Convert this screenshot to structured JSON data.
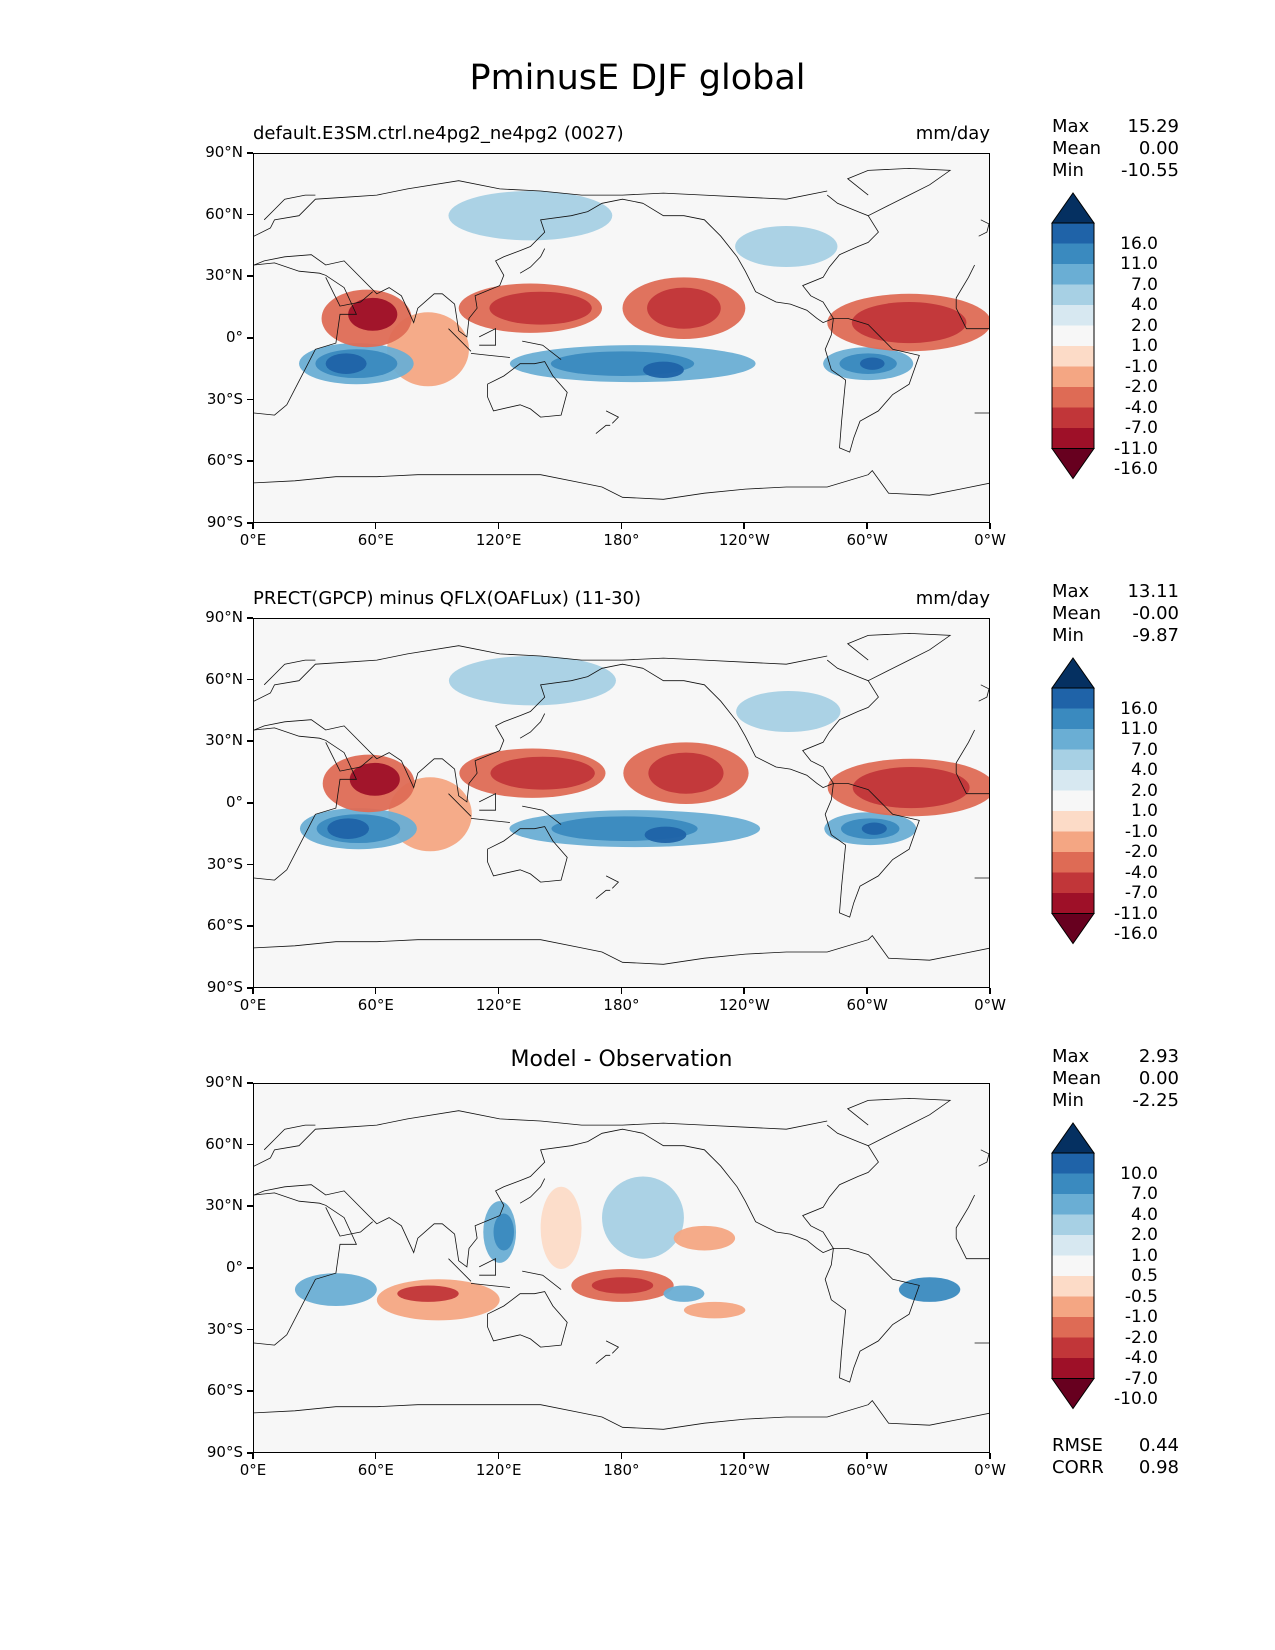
{
  "title": "PminusE DJF global",
  "axes": {
    "x_ticks": [
      "0°E",
      "60°E",
      "120°E",
      "180°",
      "120°W",
      "60°W",
      "0°W"
    ],
    "y_ticks": [
      "90°N",
      "60°N",
      "30°N",
      "0°",
      "30°S",
      "60°S",
      "90°S"
    ]
  },
  "panels": [
    {
      "title_left": "default.E3SM.ctrl.ne4pg2_ne4pg2 (0027)",
      "title_right": "mm/day",
      "title_center": "",
      "stats": [
        {
          "label": "Max",
          "value": "15.29"
        },
        {
          "label": "Mean",
          "value": "0.00"
        },
        {
          "label": "Min",
          "value": "-10.55"
        }
      ],
      "colorbar_labels": [
        "16.0",
        "11.0",
        "7.0",
        "4.0",
        "2.0",
        "1.0",
        "-1.0",
        "-2.0",
        "-4.0",
        "-7.0",
        "-11.0",
        "-16.0"
      ]
    },
    {
      "title_left": "PRECT(GPCP) minus QFLX(OAFLux) (11-30)",
      "title_right": "mm/day",
      "title_center": "",
      "stats": [
        {
          "label": "Max",
          "value": "13.11"
        },
        {
          "label": "Mean",
          "value": "-0.00"
        },
        {
          "label": "Min",
          "value": "-9.87"
        }
      ],
      "colorbar_labels": [
        "16.0",
        "11.0",
        "7.0",
        "4.0",
        "2.0",
        "1.0",
        "-1.0",
        "-2.0",
        "-4.0",
        "-7.0",
        "-11.0",
        "-16.0"
      ]
    },
    {
      "title_left": "",
      "title_right": "",
      "title_center": "Model - Observation",
      "stats": [
        {
          "label": "Max",
          "value": "2.93"
        },
        {
          "label": "Mean",
          "value": "0.00"
        },
        {
          "label": "Min",
          "value": "-2.25"
        }
      ],
      "colorbar_labels": [
        "10.0",
        "7.0",
        "4.0",
        "2.0",
        "1.0",
        "0.5",
        "-0.5",
        "-1.0",
        "-2.0",
        "-4.0",
        "-7.0",
        "-10.0"
      ],
      "extra_stats": [
        {
          "label": "RMSE",
          "value": "0.44"
        },
        {
          "label": "CORR",
          "value": "0.98"
        }
      ]
    }
  ],
  "colormap": [
    "#053061",
    "#1f63a8",
    "#3a8abf",
    "#6aaed4",
    "#a7d0e4",
    "#d7e8f1",
    "#f7f7f7",
    "#fcdbc7",
    "#f4a683",
    "#de6b55",
    "#c13639",
    "#9e1028",
    "#67001f"
  ]
}
